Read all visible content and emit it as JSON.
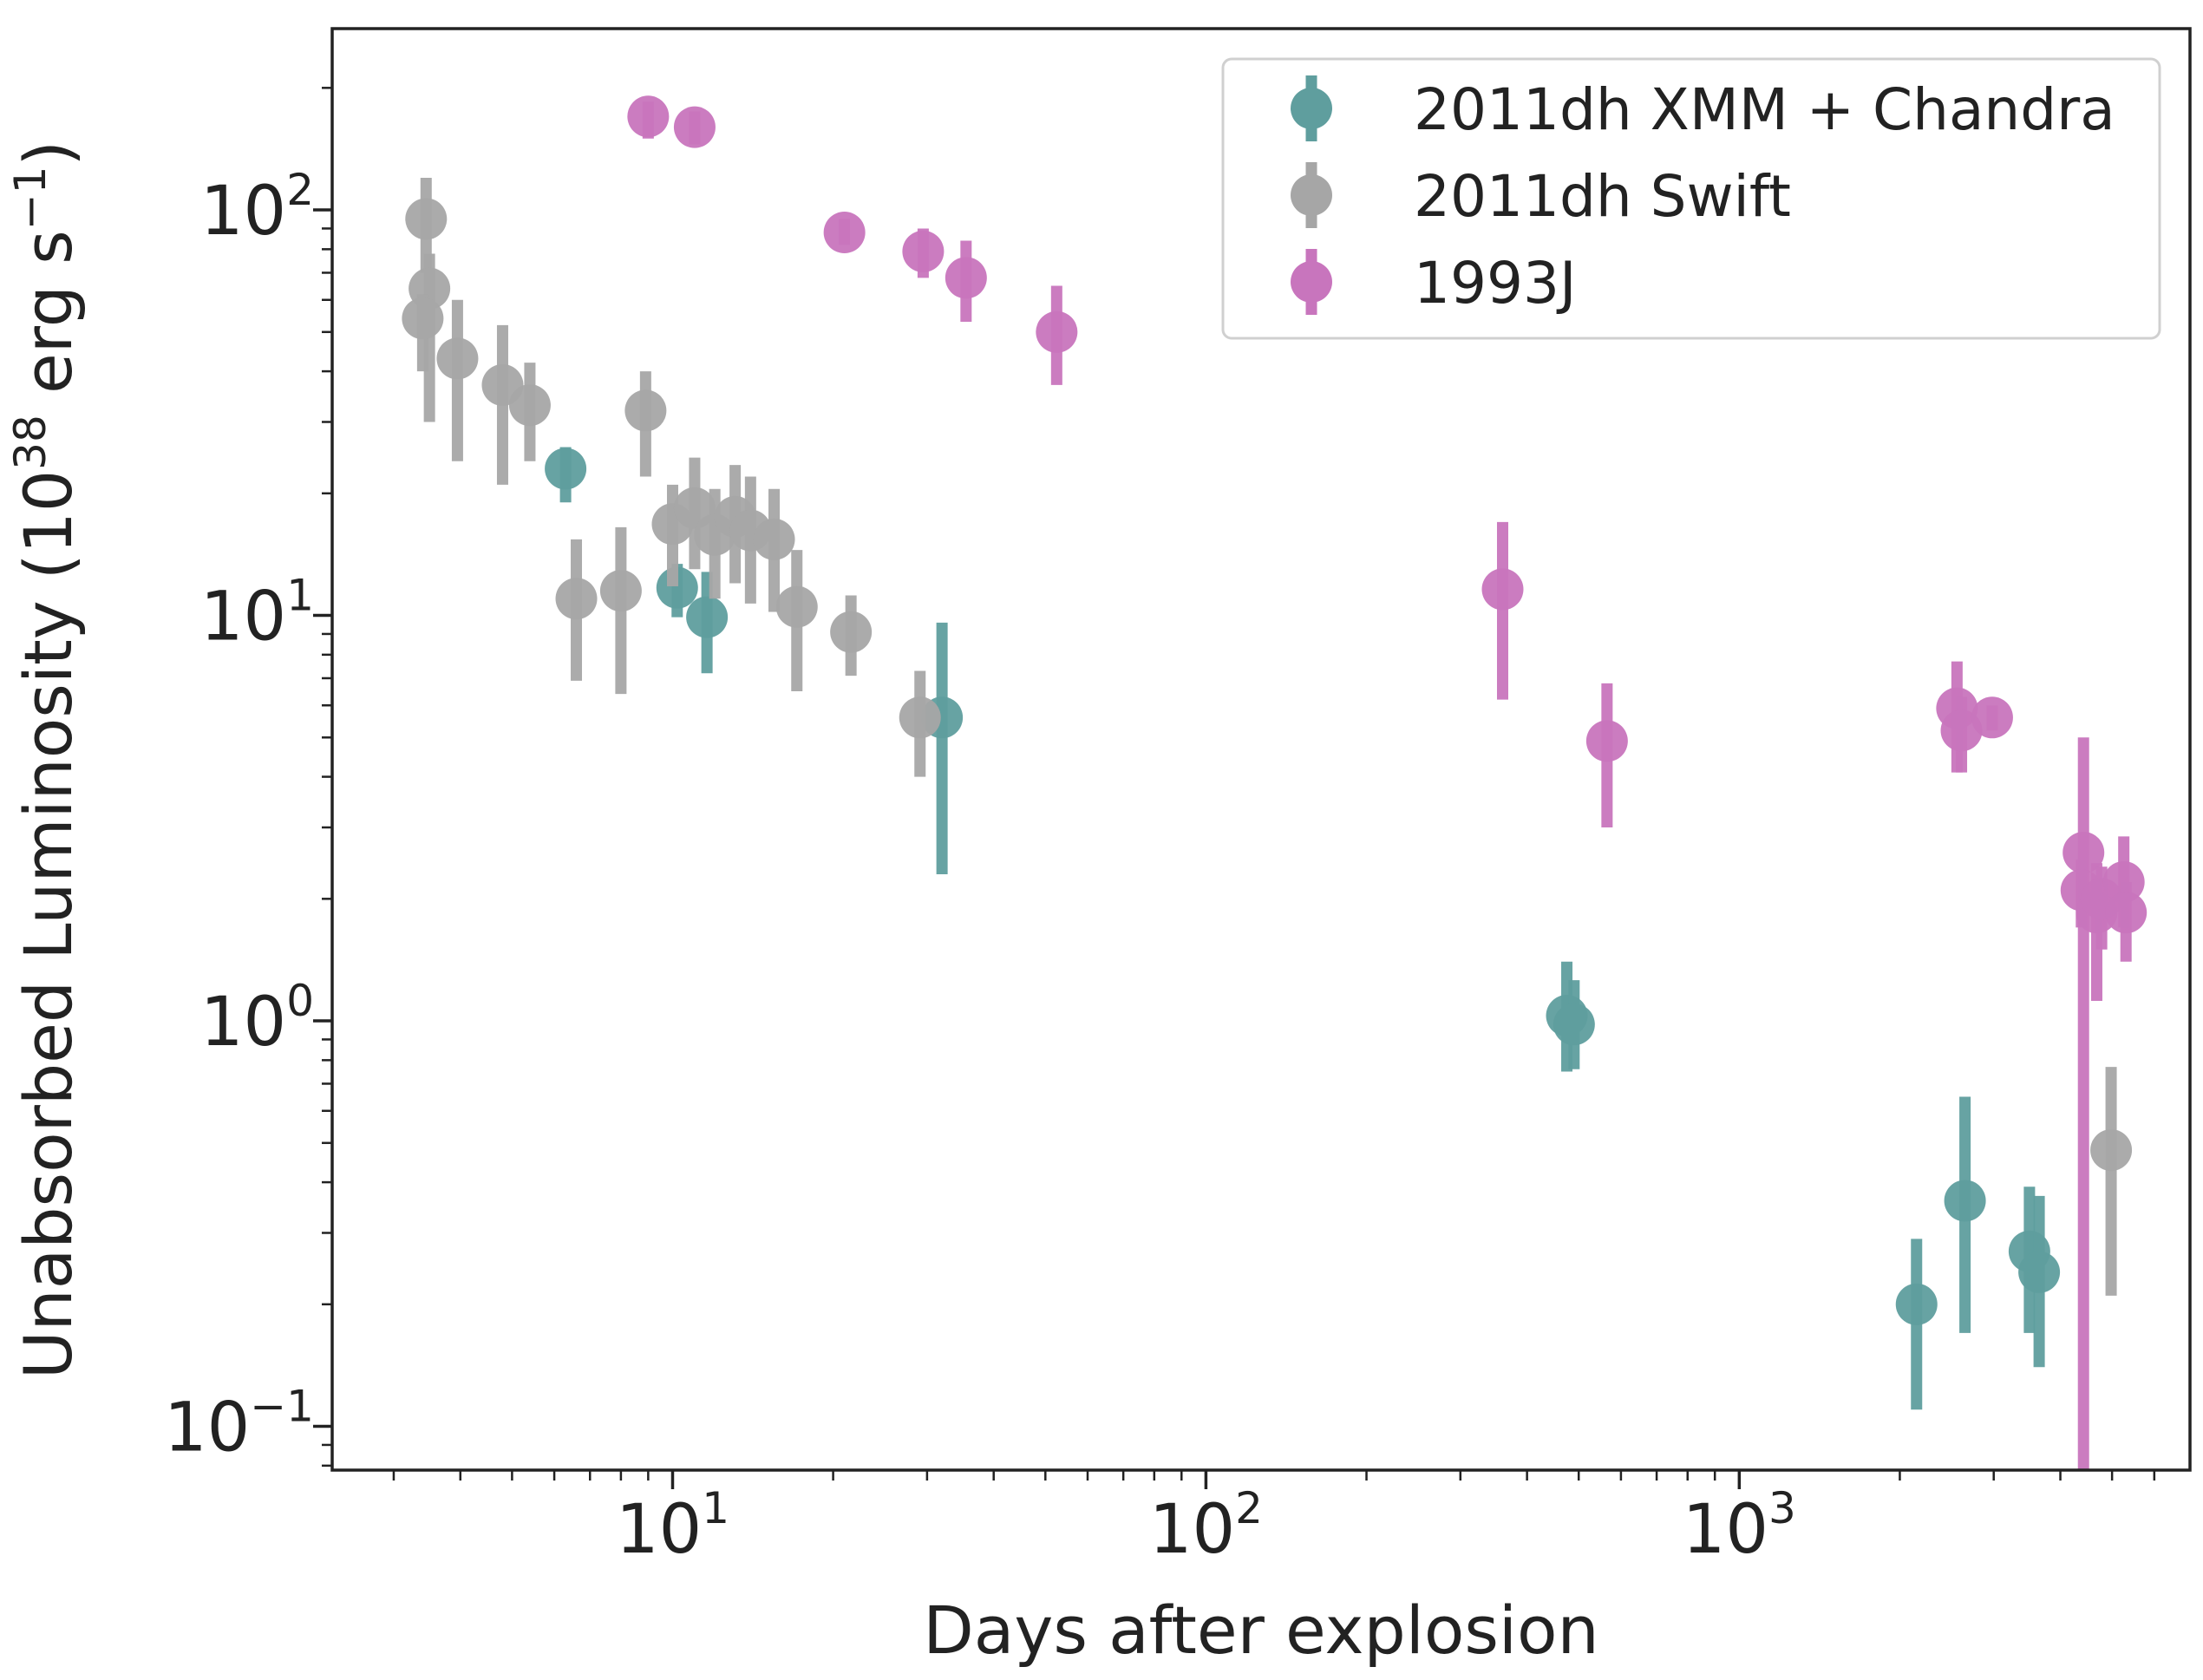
{
  "chart_data": {
    "type": "scatter",
    "xscale": "log",
    "yscale": "log",
    "xlim": [
      2.3,
      7000
    ],
    "ylim": [
      0.078,
      280
    ],
    "xlabel": "Days after explosion",
    "ylabel": {
      "prefix": "Unabsorbed Luminosity (10",
      "exp": "38",
      "mid": " erg s",
      "exp2": "−1",
      "suffix": ")"
    },
    "xticks": [
      {
        "value": 10,
        "base": "10",
        "exp": "1"
      },
      {
        "value": 100,
        "base": "10",
        "exp": "2"
      },
      {
        "value": 1000,
        "base": "10",
        "exp": "3"
      }
    ],
    "yticks": [
      {
        "value": 0.1,
        "base": "10",
        "exp": "−1"
      },
      {
        "value": 1,
        "base": "10",
        "exp": "0"
      },
      {
        "value": 10,
        "base": "10",
        "exp": "1"
      },
      {
        "value": 100,
        "base": "10",
        "exp": "2"
      }
    ],
    "legend_position": "top-right",
    "series": [
      {
        "name": "2011dh XMM + Chandra",
        "color": "#5f9e9e",
        "points": [
          {
            "x": 6.3,
            "y": 23,
            "lo": 19,
            "hi": 26
          },
          {
            "x": 10.2,
            "y": 11.7,
            "lo": 9.9,
            "hi": 13.4
          },
          {
            "x": 11.6,
            "y": 9.9,
            "lo": 7.2,
            "hi": 12.8
          },
          {
            "x": 32,
            "y": 5.6,
            "lo": 2.3,
            "hi": 9.6
          },
          {
            "x": 475,
            "y": 1.03,
            "lo": 0.75,
            "hi": 1.4
          },
          {
            "x": 490,
            "y": 0.98,
            "lo": 0.76,
            "hi": 1.26
          },
          {
            "x": 2150,
            "y": 0.2,
            "lo": 0.11,
            "hi": 0.29
          },
          {
            "x": 2650,
            "y": 0.36,
            "lo": 0.17,
            "hi": 0.65
          },
          {
            "x": 3500,
            "y": 0.27,
            "lo": 0.17,
            "hi": 0.39
          },
          {
            "x": 3650,
            "y": 0.24,
            "lo": 0.14,
            "hi": 0.37
          }
        ]
      },
      {
        "name": "2011dh Swift",
        "color": "#a6a6a6",
        "points": [
          {
            "x": 3.45,
            "y": 95,
            "lo": 70,
            "hi": 120
          },
          {
            "x": 3.5,
            "y": 64,
            "lo": 30,
            "hi": 78
          },
          {
            "x": 3.4,
            "y": 54,
            "lo": 40,
            "hi": 62
          },
          {
            "x": 3.95,
            "y": 43,
            "lo": 24,
            "hi": 60
          },
          {
            "x": 4.8,
            "y": 37,
            "lo": 21,
            "hi": 52
          },
          {
            "x": 5.4,
            "y": 33,
            "lo": 24,
            "hi": 42
          },
          {
            "x": 6.6,
            "y": 11,
            "lo": 6.9,
            "hi": 15.4
          },
          {
            "x": 8.0,
            "y": 11.5,
            "lo": 6.4,
            "hi": 16.5
          },
          {
            "x": 8.9,
            "y": 32,
            "lo": 22,
            "hi": 40
          },
          {
            "x": 10.0,
            "y": 16.8,
            "lo": 11.8,
            "hi": 21
          },
          {
            "x": 11.0,
            "y": 18.4,
            "lo": 13,
            "hi": 24.5
          },
          {
            "x": 12.0,
            "y": 15.8,
            "lo": 11,
            "hi": 20.5
          },
          {
            "x": 13.1,
            "y": 17.5,
            "lo": 12,
            "hi": 23.5
          },
          {
            "x": 14.0,
            "y": 16.2,
            "lo": 10.7,
            "hi": 22
          },
          {
            "x": 15.5,
            "y": 15.4,
            "lo": 10.2,
            "hi": 20.5
          },
          {
            "x": 17.1,
            "y": 10.5,
            "lo": 6.5,
            "hi": 14.5
          },
          {
            "x": 21.6,
            "y": 9.1,
            "lo": 7.1,
            "hi": 11.2
          },
          {
            "x": 29.1,
            "y": 5.6,
            "lo": 4.0,
            "hi": 7.3
          },
          {
            "x": 4980,
            "y": 0.48,
            "lo": 0.21,
            "hi": 0.77
          }
        ]
      },
      {
        "name": "1993J",
        "color": "#c875bd",
        "points": [
          {
            "x": 9.0,
            "y": 170,
            "lo": 150,
            "hi": 185
          },
          {
            "x": 11.0,
            "y": 160,
            "lo": 145,
            "hi": 175
          },
          {
            "x": 21.0,
            "y": 88,
            "lo": 82,
            "hi": 95
          },
          {
            "x": 29.5,
            "y": 79,
            "lo": 68,
            "hi": 90
          },
          {
            "x": 35.5,
            "y": 68,
            "lo": 53,
            "hi": 84
          },
          {
            "x": 52.5,
            "y": 50,
            "lo": 37,
            "hi": 65
          },
          {
            "x": 360,
            "y": 11.6,
            "lo": 6.2,
            "hi": 17
          },
          {
            "x": 565,
            "y": 4.9,
            "lo": 3.0,
            "hi": 6.8
          },
          {
            "x": 2560,
            "y": 5.9,
            "lo": 4.1,
            "hi": 7.7
          },
          {
            "x": 2610,
            "y": 5.2,
            "lo": 4.1,
            "hi": 6.3
          },
          {
            "x": 2980,
            "y": 5.6,
            "lo": 5.2,
            "hi": 6.0
          },
          {
            "x": 4420,
            "y": 2.6,
            "lo": 0.06,
            "hi": 5.0
          },
          {
            "x": 4380,
            "y": 2.1,
            "lo": 1.7,
            "hi": 2.5
          },
          {
            "x": 4680,
            "y": 1.85,
            "lo": 1.12,
            "hi": 2.45
          },
          {
            "x": 4780,
            "y": 2.0,
            "lo": 1.5,
            "hi": 2.4
          },
          {
            "x": 5260,
            "y": 2.2,
            "lo": 1.7,
            "hi": 2.85
          },
          {
            "x": 5310,
            "y": 1.85,
            "lo": 1.4,
            "hi": 2.2
          }
        ]
      }
    ]
  }
}
